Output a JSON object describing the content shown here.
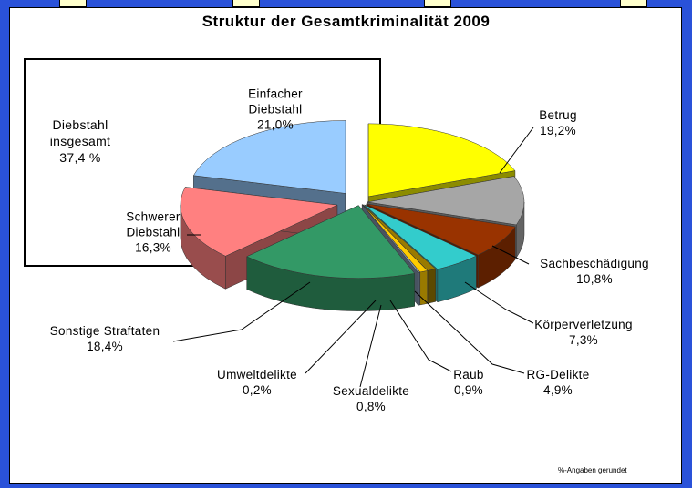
{
  "chart_data": {
    "type": "pie",
    "title": "Struktur der Gesamtkriminalität 2009",
    "categories": [
      "Betrug",
      "Sachbeschädigung",
      "Körperverletzung",
      "RG-Delikte",
      "Raub",
      "Sexualdelikte",
      "Umweltdelikte",
      "Sonstige Straftaten",
      "Schwerer Diebstahl",
      "Einfacher Diebstahl"
    ],
    "values": [
      19.2,
      10.8,
      7.3,
      4.9,
      0.9,
      0.8,
      0.2,
      18.4,
      16.3,
      21.0
    ],
    "value_labels": [
      "19,2%",
      "10,8%",
      "7,3%",
      "4,9%",
      "0,9%",
      "0,8%",
      "0,2%",
      "18,4%",
      "16,3%",
      "21,0%"
    ],
    "colors": [
      "#ffff00",
      "#a6a6a6",
      "#993300",
      "#33cccc",
      "#997a00",
      "#ffcc00",
      "#8496b0",
      "#339966",
      "#ff8080",
      "#99ccff"
    ],
    "annotation": {
      "text": "Diebstahl insgesamt",
      "value": 37.4,
      "value_label": "37,4 %"
    },
    "note": "%-Angaben gerundet"
  }
}
